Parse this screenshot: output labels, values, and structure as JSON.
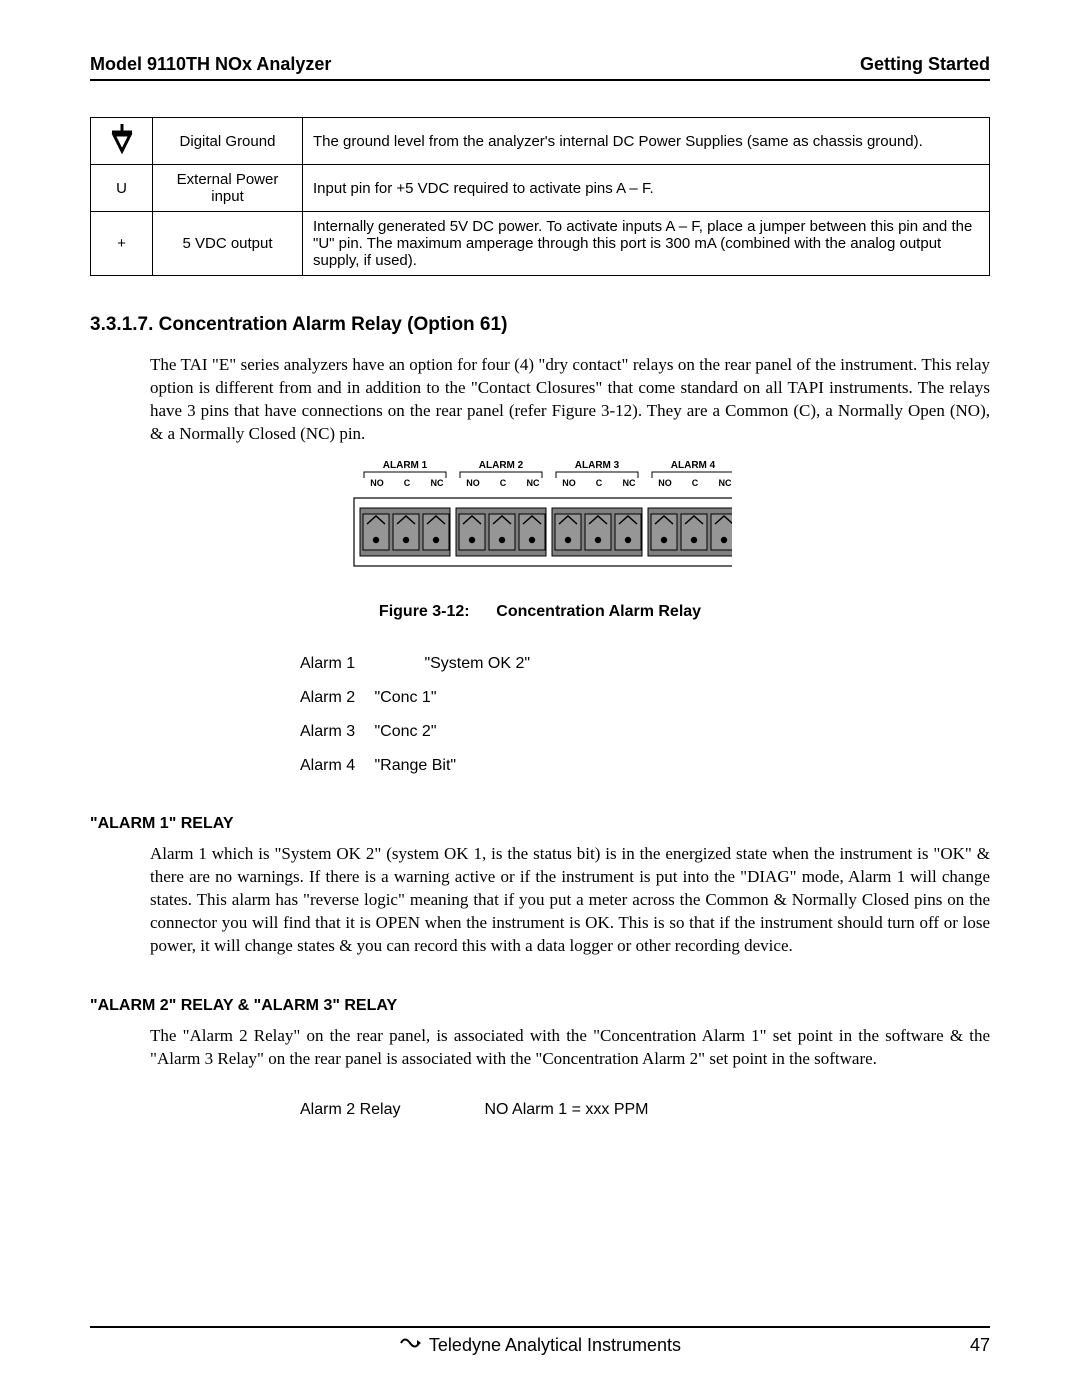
{
  "header": {
    "left": "Model 9110TH NOx Analyzer",
    "right": "Getting Started"
  },
  "pin_table": {
    "rows": [
      {
        "symbol": "ground",
        "name": "Digital Ground",
        "desc": "The ground level from the analyzer's internal DC Power Supplies (same as chassis ground)."
      },
      {
        "symbol": "U",
        "name": "External Power input",
        "desc": "Input pin for +5 VDC required to activate pins A – F."
      },
      {
        "symbol": "+",
        "name": "5 VDC output",
        "desc": "Internally generated 5V DC power.  To activate inputs A – F, place a jumper between this pin and the \"U\" pin.  The maximum amperage through this port is 300 mA (combined with the analog output supply, if used)."
      }
    ]
  },
  "section": {
    "heading": "3.3.1.7. Concentration Alarm Relay (Option 61)",
    "para": "The TAI \"E\" series analyzers have an option for four (4) \"dry contact\" relays on the rear panel of the instrument.  This relay option is different from and in addition to the \"Contact Closures\" that come standard on all TAPI instruments.  The relays have 3 pins that have connections on the rear panel (refer Figure 3-12).  They are a Common (C), a Normally Open (NO), & a Normally Closed (NC) pin."
  },
  "connector": {
    "alarms": [
      "ALARM 1",
      "ALARM 2",
      "ALARM 3",
      "ALARM 4"
    ],
    "pins": [
      "NO",
      "C",
      "NC"
    ],
    "colors": {
      "outline": "#000000",
      "block_fill": "#808080",
      "block_stroke": "#000000",
      "terminal_fill": "#969696",
      "terminal_stroke": "#000000",
      "screw_fill": "#000000",
      "clip_stroke": "#000000"
    },
    "label_fontsize": 10,
    "pin_fontsize": 9
  },
  "figure_caption": {
    "label": "Figure 3-12:",
    "title": "Concentration Alarm Relay"
  },
  "alarm_list": [
    {
      "label": "Alarm 1",
      "value": "\"System OK 2\""
    },
    {
      "label": "Alarm 2",
      "value": "\"Conc 1\""
    },
    {
      "label": "Alarm 3",
      "value": "\"Conc 2\""
    },
    {
      "label": "Alarm 4",
      "value": "\"Range Bit\""
    }
  ],
  "alarm1": {
    "heading": "\"ALARM 1\" RELAY",
    "para": "Alarm 1 which is \"System OK 2\" (system OK 1, is the status bit) is in the energized state when the instrument is \"OK\" & there are no warnings.  If there is a warning active or if the instrument is put into the \"DIAG\" mode, Alarm 1 will change states.  This alarm has \"reverse logic\" meaning that if you put a meter across the Common & Normally Closed pins on the connector you will find that it is OPEN when the instrument is OK.  This is so that if the instrument should turn off or lose power, it will change states & you can record this with a data logger or other recording device."
  },
  "alarm23": {
    "heading": "\"ALARM 2\" RELAY & \"ALARM 3\" RELAY",
    "para": "The \"Alarm 2 Relay\" on the rear panel, is associated with the \"Concentration Alarm 1\" set point in the software & the \"Alarm 3 Relay\" on the rear panel is associated with the \"Concentration Alarm 2\" set point in the software."
  },
  "relay_line": {
    "left": "Alarm 2 Relay",
    "right": "NO Alarm 1 = xxx PPM"
  },
  "footer": {
    "brand": "Teledyne Analytical Instruments",
    "page": "47"
  }
}
